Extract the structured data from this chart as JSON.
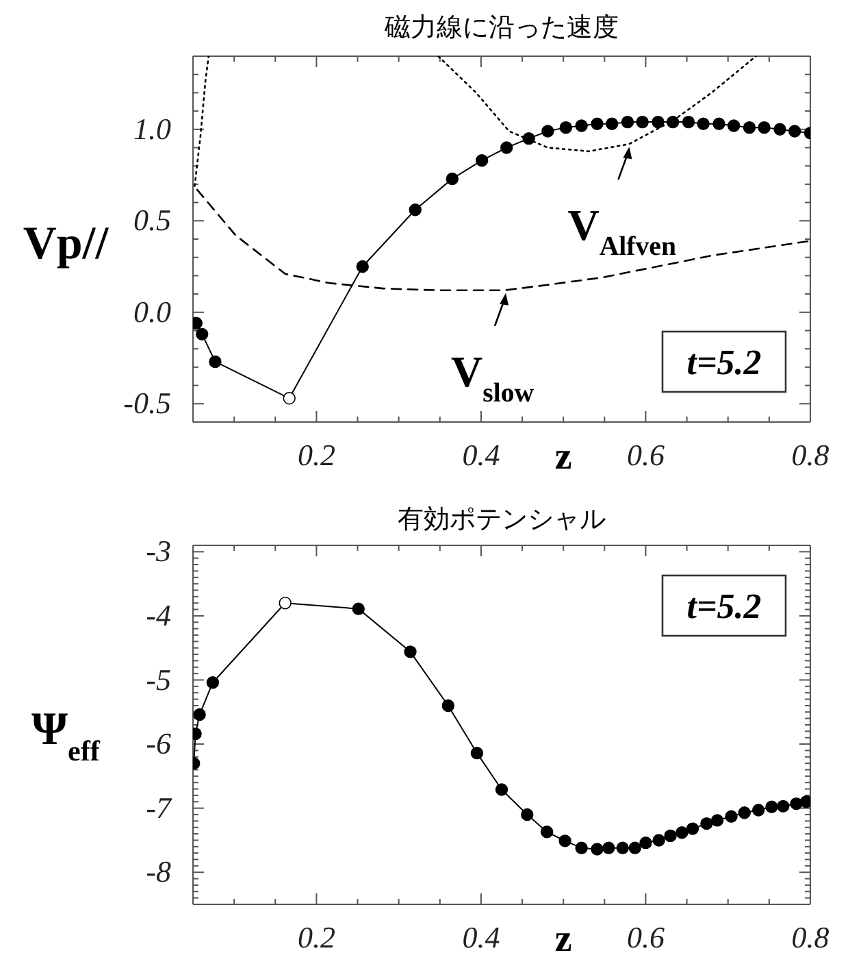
{
  "chart_data": [
    {
      "type": "line",
      "title": "磁力線に沿った速度",
      "xlabel": "z",
      "ylabel": "Vp//",
      "xlim": [
        0.05,
        0.8
      ],
      "ylim": [
        -0.6,
        1.4
      ],
      "xticks": [
        {
          "value": 0.05,
          "label": null
        },
        {
          "value": 0.1,
          "label": null
        },
        {
          "value": 0.15,
          "label": null
        },
        0.2,
        {
          "value": 0.25,
          "label": null
        },
        {
          "value": 0.3,
          "label": null
        },
        {
          "value": 0.35,
          "label": null
        },
        0.4,
        {
          "value": 0.45,
          "label": null
        },
        {
          "value": 0.5,
          "label": null
        },
        {
          "value": 0.55,
          "label": null
        },
        0.6,
        {
          "value": 0.65,
          "label": null
        },
        {
          "value": 0.7,
          "label": null
        },
        {
          "value": 0.75,
          "label": null
        },
        0.8
      ],
      "yticks": [
        {
          "value": -0.6,
          "label": null
        },
        {
          "value": -0.5,
          "label": "-0.5"
        },
        {
          "value": -0.4,
          "label": null
        },
        {
          "value": -0.3,
          "label": null
        },
        {
          "value": -0.2,
          "label": null
        },
        {
          "value": -0.1,
          "label": null
        },
        {
          "value": 0,
          "label": "0.0"
        },
        {
          "value": 0.1,
          "label": null
        },
        {
          "value": 0.2,
          "label": null
        },
        {
          "value": 0.3,
          "label": null
        },
        {
          "value": 0.4,
          "label": null
        },
        {
          "value": 0.5,
          "label": "0.5"
        },
        {
          "value": 0.6,
          "label": null
        },
        {
          "value": 0.7,
          "label": null
        },
        {
          "value": 0.8,
          "label": null
        },
        {
          "value": 0.9,
          "label": null
        },
        {
          "value": 1,
          "label": "1.0"
        },
        {
          "value": 1.1,
          "label": null
        },
        {
          "value": 1.2,
          "label": null
        },
        {
          "value": 1.3,
          "label": null
        },
        {
          "value": 1.4,
          "label": null
        }
      ],
      "grid": false,
      "series": [
        {
          "color": "#000000",
          "marker": "circle",
          "line_style": "solid",
          "colors": [
            "#000000",
            "#000000",
            "#000000",
            "#ffffff",
            "#000000",
            "#000000",
            "#000000",
            "#000000",
            "#000000",
            "#000000",
            "#000000",
            "#000000",
            "#000000",
            "#000000",
            "#000000",
            "#000000",
            "#000000",
            "#000000",
            "#000000",
            "#000000",
            "#000000",
            "#000000",
            "#000000",
            "#000000",
            "#000000",
            "#000000",
            "#000000",
            "#000000"
          ],
          "x": [
            0.054,
            0.061,
            0.077,
            0.167,
            0.256,
            0.32,
            0.365,
            0.401,
            0.431,
            0.458,
            0.481,
            0.503,
            0.522,
            0.541,
            0.559,
            0.578,
            0.596,
            0.615,
            0.633,
            0.652,
            0.67,
            0.689,
            0.707,
            0.726,
            0.744,
            0.763,
            0.781,
            0.8
          ],
          "values": [
            -0.06,
            -0.12,
            -0.27,
            -0.47,
            0.25,
            0.56,
            0.73,
            0.83,
            0.9,
            0.95,
            0.99,
            1.01,
            1.02,
            1.03,
            1.03,
            1.04,
            1.04,
            1.04,
            1.04,
            1.04,
            1.03,
            1.03,
            1.02,
            1.01,
            1.01,
            1,
            0.99,
            0.98
          ]
        },
        {
          "color": "#000000",
          "marker": "none",
          "line_style": "dotted",
          "x": [
            0.052,
            0.059,
            0.065,
            0.069,
            0.2,
            0.348,
            0.394,
            0.434,
            0.481,
            0.531,
            0.58,
            0.634,
            0.68,
            0.734
          ],
          "values": [
            0.69,
            0.96,
            1.26,
            1.4,
            null,
            1.4,
            1.2,
            0.99,
            0.9,
            0.88,
            0.92,
            1.05,
            1.2,
            1.4
          ]
        },
        {
          "color": "#000000",
          "marker": "none",
          "line_style": "dashed",
          "x": [
            0.055,
            0.102,
            0.162,
            0.215,
            0.281,
            0.348,
            0.428,
            0.481,
            0.547,
            0.614,
            0.68,
            0.8
          ],
          "values": [
            0.67,
            0.42,
            0.21,
            0.16,
            0.13,
            0.12,
            0.12,
            0.15,
            0.19,
            0.25,
            0.31,
            0.39
          ]
        }
      ],
      "annotations": [
        {
          "text": "V$_{Alfven}$",
          "x": 0.58,
          "y": 0.92
        },
        {
          "text": "V$_{slow}$",
          "x": 0.43,
          "y": 0.12
        },
        "t=5.2"
      ]
    },
    {
      "type": "line",
      "title": "有効ポテンシャル",
      "xlabel": "z",
      "ylabel": "Ψ$_{eff}$",
      "xlim": [
        0.05,
        0.8
      ],
      "ylim": [
        -8.5,
        -2.9
      ],
      "xticks": [
        {
          "value": 0.05,
          "label": null
        },
        {
          "value": 0.1,
          "label": null
        },
        {
          "value": 0.15,
          "label": null
        },
        0.2,
        {
          "value": 0.25,
          "label": null
        },
        {
          "value": 0.3,
          "label": null
        },
        {
          "value": 0.35,
          "label": null
        },
        0.4,
        {
          "value": 0.45,
          "label": null
        },
        {
          "value": 0.5,
          "label": null
        },
        {
          "value": 0.55,
          "label": null
        },
        0.6,
        {
          "value": 0.65,
          "label": null
        },
        {
          "value": 0.7,
          "label": null
        },
        {
          "value": 0.75,
          "label": null
        },
        0.8
      ],
      "yticks": [
        {
          "value": -8.5,
          "label": null
        },
        {
          "value": -8.4,
          "label": null
        },
        {
          "value": -8.3,
          "label": null
        },
        {
          "value": -8.2,
          "label": null
        },
        {
          "value": -8.1,
          "label": null
        },
        -8,
        {
          "value": -7.9,
          "label": null
        },
        {
          "value": -7.8,
          "label": null
        },
        {
          "value": -7.7,
          "label": null
        },
        {
          "value": -7.6,
          "label": null
        },
        {
          "value": -7.5,
          "label": null
        },
        {
          "value": -7.4,
          "label": null
        },
        {
          "value": -7.3,
          "label": null
        },
        {
          "value": -7.2,
          "label": null
        },
        {
          "value": -7.1,
          "label": null
        },
        -7,
        {
          "value": -6.9,
          "label": null
        },
        {
          "value": -6.8,
          "label": null
        },
        {
          "value": -6.7,
          "label": null
        },
        {
          "value": -6.6,
          "label": null
        },
        {
          "value": -6.5,
          "label": null
        },
        {
          "value": -6.4,
          "label": null
        },
        {
          "value": -6.3,
          "label": null
        },
        {
          "value": -6.2,
          "label": null
        },
        {
          "value": -6.1,
          "label": null
        },
        -6,
        {
          "value": -5.9,
          "label": null
        },
        {
          "value": -5.8,
          "label": null
        },
        {
          "value": -5.7,
          "label": null
        },
        {
          "value": -5.6,
          "label": null
        },
        {
          "value": -5.5,
          "label": null
        },
        {
          "value": -5.4,
          "label": null
        },
        {
          "value": -5.3,
          "label": null
        },
        {
          "value": -5.2,
          "label": null
        },
        {
          "value": -5.1,
          "label": null
        },
        -5,
        {
          "value": -4.9,
          "label": null
        },
        {
          "value": -4.8,
          "label": null
        },
        {
          "value": -4.7,
          "label": null
        },
        {
          "value": -4.6,
          "label": null
        },
        {
          "value": -4.5,
          "label": null
        },
        {
          "value": -4.4,
          "label": null
        },
        {
          "value": -4.3,
          "label": null
        },
        {
          "value": -4.2,
          "label": null
        },
        {
          "value": -4.1,
          "label": null
        },
        -4,
        {
          "value": -3.9,
          "label": null
        },
        {
          "value": -3.8,
          "label": null
        },
        {
          "value": -3.7,
          "label": null
        },
        {
          "value": -3.6,
          "label": null
        },
        {
          "value": -3.5,
          "label": null
        },
        {
          "value": -3.4,
          "label": null
        },
        {
          "value": -3.3,
          "label": null
        },
        {
          "value": -3.2,
          "label": null
        },
        {
          "value": -3.1,
          "label": null
        },
        -3
      ],
      "grid": false,
      "series": [
        {
          "color": "#000000",
          "marker": "circle",
          "line_style": "solid",
          "colors": [
            "#000000",
            "#000000",
            "#000000",
            "#000000",
            "#ffffff",
            "#000000",
            "#000000",
            "#000000",
            "#000000",
            "#000000",
            "#000000",
            "#000000",
            "#000000",
            "#000000",
            "#000000",
            "#000000",
            "#000000",
            "#000000",
            "#000000",
            "#000000",
            "#000000",
            "#000000",
            "#000000",
            "#000000",
            "#000000",
            "#000000",
            "#000000",
            "#000000",
            "#000000",
            "#000000",
            "#000000",
            "#000000"
          ],
          "x": [
            0.051,
            0.053,
            0.058,
            0.074,
            0.162,
            0.251,
            0.314,
            0.36,
            0.395,
            0.425,
            0.456,
            0.48,
            0.502,
            0.522,
            0.541,
            0.555,
            0.572,
            0.587,
            0.6,
            0.616,
            0.63,
            0.644,
            0.657,
            0.674,
            0.687,
            0.704,
            0.72,
            0.737,
            0.753,
            0.767,
            0.783,
            0.795
          ],
          "values": [
            -6.3,
            -5.84,
            -5.54,
            -5.04,
            -3.8,
            -3.89,
            -4.56,
            -5.4,
            -6.14,
            -6.71,
            -7.1,
            -7.37,
            -7.51,
            -7.62,
            -7.64,
            -7.62,
            -7.62,
            -7.62,
            -7.54,
            -7.5,
            -7.43,
            -7.38,
            -7.32,
            -7.24,
            -7.19,
            -7.13,
            -7.07,
            -7.03,
            -6.98,
            -6.97,
            -6.93,
            -6.9
          ]
        }
      ],
      "annotations": [
        "t=5.2"
      ]
    }
  ]
}
